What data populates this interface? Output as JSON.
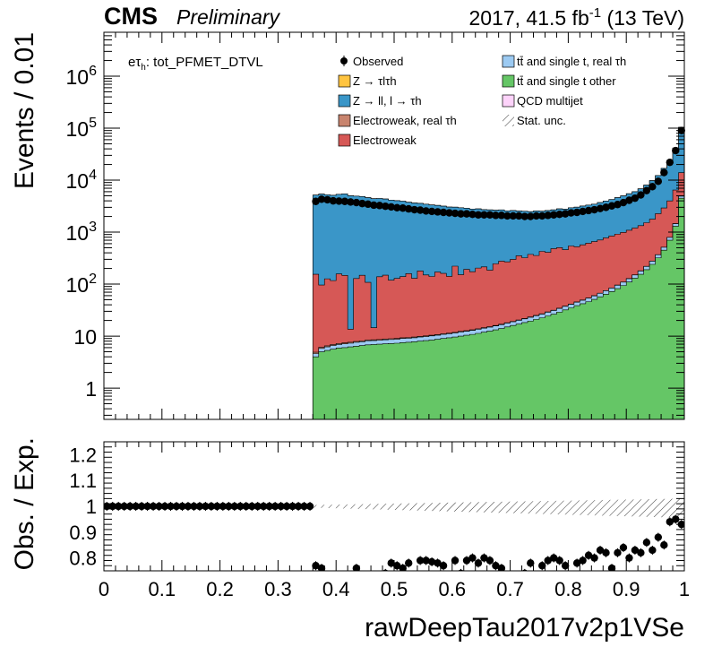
{
  "header": {
    "cms": "CMS",
    "preliminary": "Preliminary",
    "lumi_prefix": "2017, 41.5 fb",
    "lumi_exp": "-1",
    "lumi_suffix": " (13 TeV)"
  },
  "channel": {
    "e": "e",
    "tau": "τ",
    "h": "h",
    "rest": ": tot_PFMET_DTVL"
  },
  "legend": [
    {
      "key": "observed",
      "label": "Observed",
      "type": "marker",
      "color": "#000000"
    },
    {
      "key": "ztt",
      "label": "Z → τlτh",
      "type": "box",
      "color": "#FFC440"
    },
    {
      "key": "zll",
      "label": "Z → ll, l → τh",
      "type": "box",
      "color": "#3A96C8"
    },
    {
      "key": "ewk_real",
      "label": "Electroweak, real τh",
      "type": "box",
      "color": "#C8846E"
    },
    {
      "key": "ewk",
      "label": "Electroweak",
      "type": "box",
      "color": "#D65856"
    },
    {
      "key": "tt_real",
      "label": "tt̄ and single t, real τh",
      "type": "box",
      "color": "#9CCAF2"
    },
    {
      "key": "tt_other",
      "label": "tt̄ and single t other",
      "type": "box",
      "color": "#65C666"
    },
    {
      "key": "qcd",
      "label": "QCD multijet",
      "type": "box",
      "color": "#FDD3FA"
    },
    {
      "key": "unc",
      "label": "Stat. unc.",
      "type": "hatch",
      "color": "#000000"
    }
  ],
  "chart_data": [
    {
      "type": "area",
      "subtype": "stacked-histogram",
      "xlabel": "",
      "ylabel": "Events / 0.01",
      "ylog": true,
      "xlim": [
        0,
        1
      ],
      "ylim": [
        0.25,
        7000000
      ],
      "yticks": [
        "1",
        "10",
        "10^2",
        "10^3",
        "10^4",
        "10^5",
        "10^6"
      ],
      "bin_edges_start": 0.36,
      "bin_width": 0.01,
      "bin_centers_note": "bins from 0.36 to 1.00",
      "series": [
        {
          "name": "tt̄ and single t other",
          "key": "tt_other",
          "values": [
            4.0,
            5.0,
            5.3,
            5.6,
            5.9,
            6.0,
            6.2,
            6.4,
            6.6,
            6.8,
            6.9,
            7.0,
            7.1,
            7.2,
            7.3,
            7.5,
            7.6,
            7.8,
            8.0,
            8.2,
            8.4,
            8.7,
            9.0,
            9.3,
            9.6,
            10.0,
            10.4,
            10.8,
            11.3,
            11.9,
            12.5,
            13.2,
            14.0,
            15.0,
            16.0,
            17.0,
            18.2,
            19.5,
            21.0,
            22.5,
            24.5,
            26.5,
            29.0,
            32.0,
            35.0,
            38.5,
            42.0,
            46.0,
            51.0,
            57.0,
            64.0,
            72.0,
            82.0,
            94.0,
            110.0,
            130.0,
            155.0,
            190.0,
            240.0,
            320.0,
            450.0,
            700.0,
            1300.0,
            4500.0
          ]
        },
        {
          "name": "tt̄ and single t, real τh",
          "key": "tt_real",
          "values": [
            0.6,
            0.8,
            0.9,
            1.0,
            1.0,
            1.1,
            1.1,
            1.2,
            1.2,
            1.3,
            1.3,
            1.3,
            1.4,
            1.4,
            1.4,
            1.5,
            1.5,
            1.5,
            1.6,
            1.6,
            1.7,
            1.7,
            1.8,
            1.8,
            1.9,
            2.0,
            2.0,
            2.1,
            2.2,
            2.3,
            2.4,
            2.5,
            2.6,
            2.8,
            2.9,
            3.1,
            3.3,
            3.5,
            3.7,
            4.0,
            4.3,
            4.6,
            5.0,
            5.4,
            5.9,
            6.4,
            7.0,
            7.7,
            8.5,
            9.4,
            10.5,
            11.8,
            13.3,
            15.0,
            17.0,
            20.0,
            24.0,
            29.0,
            36.0,
            46.0,
            62.0,
            90.0,
            150.0,
            400.0
          ]
        },
        {
          "name": "Electroweak, real τh",
          "key": "ewk_real",
          "values": [
            0.3,
            0.3,
            0.3,
            0.3,
            0.3,
            0.3,
            0.3,
            0.3,
            0.3,
            0.3,
            0.3,
            0.3,
            0.3,
            0.3,
            0.3,
            0.3,
            0.3,
            0.3,
            0.3,
            0.3,
            0.3,
            0.3,
            0.3,
            0.3,
            0.3,
            0.3,
            0.3,
            0.3,
            0.3,
            0.3,
            0.3,
            0.3,
            0.3,
            0.3,
            0.3,
            0.3,
            0.3,
            0.4,
            0.4,
            0.4,
            0.4,
            0.4,
            0.4,
            0.4,
            0.5,
            0.5,
            0.5,
            0.5,
            0.6,
            0.6,
            0.7,
            0.7,
            0.8,
            0.9,
            1.0,
            1.1,
            1.3,
            1.5,
            1.8,
            2.2,
            2.8,
            3.8,
            6.0,
            12.0
          ]
        },
        {
          "name": "Electroweak",
          "key": "ewk",
          "values": [
            150,
            90,
            120,
            110,
            150,
            140,
            6,
            120,
            140,
            100,
            6,
            130,
            140,
            110,
            120,
            130,
            150,
            120,
            170,
            140,
            130,
            160,
            150,
            130,
            210,
            140,
            180,
            160,
            190,
            200,
            170,
            230,
            260,
            250,
            280,
            330,
            300,
            350,
            330,
            400,
            380,
            450,
            470,
            420,
            500,
            480,
            520,
            560,
            600,
            640,
            700,
            760,
            820,
            880,
            960,
            1050,
            1150,
            1300,
            1500,
            1900,
            2400,
            3200,
            5000,
            9000
          ]
        },
        {
          "name": "Z → ll, l → τh",
          "key": "zll",
          "values": [
            5000,
            5300,
            5100,
            5000,
            5200,
            5300,
            5000,
            4800,
            4700,
            4500,
            4400,
            4300,
            4200,
            4000,
            3900,
            3800,
            3600,
            3500,
            3400,
            3300,
            3200,
            3100,
            3000,
            2900,
            2800,
            2800,
            2700,
            2600,
            2600,
            2500,
            2500,
            2400,
            2400,
            2300,
            2300,
            2200,
            2200,
            2100,
            2200,
            2100,
            2200,
            2200,
            2300,
            2300,
            2400,
            2500,
            2600,
            2700,
            2800,
            3000,
            3200,
            3400,
            3700,
            4000,
            4400,
            4800,
            5500,
            6500,
            8000,
            10000,
            14000,
            20000,
            35000,
            90000
          ]
        },
        {
          "name": "Z → τlτh",
          "key": "ztt",
          "values": [
            2,
            2,
            2,
            2,
            2,
            2,
            2,
            2,
            2,
            2,
            2,
            2,
            2,
            2,
            2,
            2,
            2,
            2,
            2,
            2,
            2,
            2,
            2,
            2,
            2,
            2,
            2,
            2,
            2,
            2,
            2,
            2,
            2,
            2,
            2,
            2,
            2,
            2,
            2,
            2,
            2,
            2,
            2,
            2,
            2,
            2,
            2,
            2,
            2,
            2,
            2,
            2,
            2,
            2,
            2,
            2,
            2,
            2,
            2,
            2,
            2,
            2,
            2,
            2
          ]
        },
        {
          "name": "Observed",
          "key": "observed",
          "type": "scatter",
          "values": [
            3900,
            4300,
            4200,
            4000,
            3950,
            3900,
            3800,
            3700,
            3550,
            3450,
            3300,
            3250,
            3150,
            3050,
            2950,
            2900,
            2800,
            2700,
            2650,
            2550,
            2500,
            2450,
            2400,
            2350,
            2300,
            2250,
            2250,
            2200,
            2150,
            2150,
            2150,
            2100,
            2100,
            2050,
            2050,
            2050,
            2000,
            2000,
            2050,
            2050,
            2100,
            2150,
            2200,
            2250,
            2350,
            2400,
            2500,
            2600,
            2700,
            2850,
            3000,
            3200,
            3400,
            3700,
            4100,
            4500,
            5200,
            6300,
            7500,
            9500,
            14000,
            22000,
            37000,
            90000
          ]
        }
      ]
    },
    {
      "type": "scatter",
      "subtype": "ratio",
      "xlabel": "rawDeepTau2017v2p1VSe",
      "ylabel": "Obs. / Exp.",
      "xlim": [
        0,
        1
      ],
      "ylim": [
        0.75,
        1.25
      ],
      "xticks": [
        "0",
        "0.1",
        "0.2",
        "0.3",
        "0.4",
        "0.5",
        "0.6",
        "0.7",
        "0.8",
        "0.9",
        "1"
      ],
      "yticks": [
        "0.8",
        "0.9",
        "1",
        "1.1",
        "1.2"
      ],
      "unc_band": {
        "x_start": 0.36,
        "lower_start": 0.995,
        "upper_start": 1.005,
        "lower_end": 0.955,
        "upper_end": 1.03
      },
      "x": [
        0.005,
        0.015,
        0.025,
        0.035,
        0.045,
        0.055,
        0.065,
        0.075,
        0.085,
        0.095,
        0.105,
        0.115,
        0.125,
        0.135,
        0.145,
        0.155,
        0.165,
        0.175,
        0.185,
        0.195,
        0.205,
        0.215,
        0.225,
        0.235,
        0.245,
        0.255,
        0.265,
        0.275,
        0.285,
        0.295,
        0.305,
        0.315,
        0.325,
        0.335,
        0.345,
        0.355,
        0.365,
        0.375,
        0.385,
        0.395,
        0.405,
        0.415,
        0.425,
        0.435,
        0.445,
        0.455,
        0.465,
        0.475,
        0.485,
        0.495,
        0.505,
        0.515,
        0.525,
        0.535,
        0.545,
        0.555,
        0.565,
        0.575,
        0.585,
        0.595,
        0.605,
        0.615,
        0.625,
        0.635,
        0.645,
        0.655,
        0.665,
        0.675,
        0.685,
        0.695,
        0.705,
        0.715,
        0.725,
        0.735,
        0.745,
        0.755,
        0.765,
        0.775,
        0.785,
        0.795,
        0.805,
        0.815,
        0.825,
        0.835,
        0.845,
        0.855,
        0.865,
        0.875,
        0.885,
        0.895,
        0.905,
        0.915,
        0.925,
        0.935,
        0.945,
        0.955,
        0.965,
        0.975,
        0.985,
        0.995
      ],
      "y": [
        1,
        1,
        1,
        1,
        1,
        1,
        1,
        1,
        1,
        1,
        1,
        1,
        1,
        1,
        1,
        1,
        1,
        1,
        1,
        1,
        1,
        1,
        1,
        1,
        1,
        1,
        1,
        1,
        1,
        1,
        1,
        1,
        1,
        1,
        1,
        1,
        0.77,
        0.76,
        0.72,
        0.73,
        0.71,
        0.72,
        0.73,
        0.76,
        0.73,
        0.72,
        0.71,
        0.72,
        0.74,
        0.78,
        0.77,
        0.76,
        0.78,
        0.73,
        0.79,
        0.79,
        0.785,
        0.78,
        0.77,
        0.73,
        0.79,
        0.74,
        0.79,
        0.8,
        0.78,
        0.8,
        0.79,
        0.77,
        0.76,
        0.73,
        0.72,
        0.7,
        0.74,
        0.78,
        0.73,
        0.77,
        0.79,
        0.8,
        0.79,
        0.77,
        0.73,
        0.78,
        0.79,
        0.81,
        0.8,
        0.83,
        0.82,
        0.76,
        0.82,
        0.84,
        0.8,
        0.83,
        0.82,
        0.86,
        0.83,
        0.88,
        0.85,
        0.94,
        0.95,
        0.93
      ]
    }
  ]
}
